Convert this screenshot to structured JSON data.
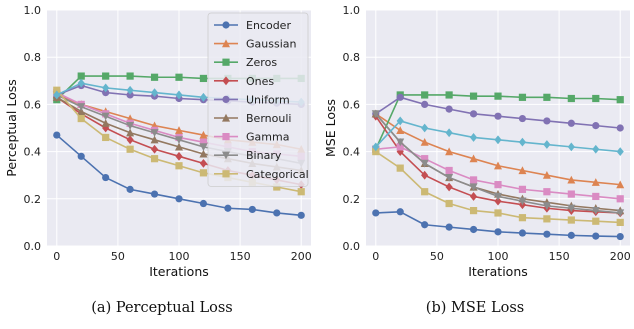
{
  "chart_data": [
    {
      "type": "line",
      "caption": "(a) Perceptual Loss",
      "xlabel": "Iterations",
      "ylabel": "Perceptual Loss",
      "xlim": [
        -8,
        208
      ],
      "ylim": [
        0.0,
        1.0
      ],
      "xticks": [
        "0",
        "50",
        "100",
        "150",
        "200"
      ],
      "yticks": [
        "0.0",
        "0.2",
        "0.4",
        "0.6",
        "0.8",
        "1.0"
      ],
      "grid": true,
      "legend_position": "top-right",
      "x": [
        0,
        20,
        40,
        60,
        80,
        100,
        120,
        140,
        160,
        180,
        200
      ],
      "series": [
        {
          "name": "Encoder",
          "color": "#4c72b0",
          "marker": "circle",
          "values": [
            0.47,
            0.38,
            0.29,
            0.24,
            0.22,
            0.2,
            0.18,
            0.16,
            0.155,
            0.14,
            0.13
          ]
        },
        {
          "name": "Gaussian",
          "color": "#dd8452",
          "marker": "triangle-up",
          "values": [
            0.64,
            0.6,
            0.57,
            0.54,
            0.51,
            0.49,
            0.47,
            0.45,
            0.44,
            0.43,
            0.41
          ]
        },
        {
          "name": "Zeros",
          "color": "#55a868",
          "marker": "square",
          "values": [
            0.62,
            0.72,
            0.72,
            0.72,
            0.715,
            0.715,
            0.71,
            0.71,
            0.71,
            0.71,
            0.71
          ]
        },
        {
          "name": "Ones",
          "color": "#c44e52",
          "marker": "diamond",
          "values": [
            0.63,
            0.56,
            0.5,
            0.45,
            0.41,
            0.38,
            0.35,
            0.32,
            0.3,
            0.28,
            0.26
          ]
        },
        {
          "name": "Uniform",
          "color": "#8172b3",
          "marker": "circle",
          "values": [
            0.64,
            0.68,
            0.65,
            0.64,
            0.635,
            0.625,
            0.62,
            0.615,
            0.61,
            0.605,
            0.6
          ]
        },
        {
          "name": "Bernouli",
          "color": "#937860",
          "marker": "triangle-up",
          "values": [
            0.63,
            0.57,
            0.52,
            0.48,
            0.45,
            0.42,
            0.39,
            0.37,
            0.35,
            0.335,
            0.32
          ]
        },
        {
          "name": "Gamma",
          "color": "#da8bc3",
          "marker": "square",
          "values": [
            0.65,
            0.6,
            0.56,
            0.52,
            0.49,
            0.46,
            0.44,
            0.42,
            0.4,
            0.39,
            0.38
          ]
        },
        {
          "name": "Binary",
          "color": "#8c8c8c",
          "marker": "triangle-down",
          "values": [
            0.64,
            0.59,
            0.55,
            0.51,
            0.48,
            0.45,
            0.42,
            0.4,
            0.38,
            0.37,
            0.35
          ]
        },
        {
          "name": "Categorical",
          "color": "#ccb974",
          "marker": "square",
          "values": [
            0.66,
            0.54,
            0.46,
            0.41,
            0.37,
            0.34,
            0.31,
            0.29,
            0.27,
            0.25,
            0.23
          ]
        },
        {
          "name": "",
          "color": "#64b5cd",
          "marker": "diamond",
          "values": [
            0.64,
            0.69,
            0.67,
            0.66,
            0.65,
            0.64,
            0.63,
            0.625,
            0.62,
            0.615,
            0.61
          ]
        }
      ]
    },
    {
      "type": "line",
      "caption": "(b) MSE Loss",
      "xlabel": "Iterations",
      "ylabel": "MSE Loss",
      "xlim": [
        -8,
        208
      ],
      "ylim": [
        0.0,
        1.0
      ],
      "xticks": [
        "0",
        "50",
        "100",
        "150",
        "200"
      ],
      "yticks": [
        "0.0",
        "0.2",
        "0.4",
        "0.6",
        "0.8",
        "1.0"
      ],
      "grid": true,
      "legend_position": "none",
      "x": [
        0,
        20,
        40,
        60,
        80,
        100,
        120,
        140,
        160,
        180,
        200
      ],
      "series": [
        {
          "name": "Encoder",
          "color": "#4c72b0",
          "marker": "circle",
          "values": [
            0.14,
            0.145,
            0.09,
            0.08,
            0.07,
            0.06,
            0.055,
            0.05,
            0.045,
            0.042,
            0.04
          ]
        },
        {
          "name": "Gaussian",
          "color": "#dd8452",
          "marker": "triangle-up",
          "values": [
            0.56,
            0.49,
            0.44,
            0.4,
            0.37,
            0.34,
            0.32,
            0.3,
            0.28,
            0.27,
            0.26
          ]
        },
        {
          "name": "Zeros",
          "color": "#55a868",
          "marker": "square",
          "values": [
            0.41,
            0.64,
            0.64,
            0.64,
            0.635,
            0.635,
            0.63,
            0.63,
            0.625,
            0.625,
            0.62
          ]
        },
        {
          "name": "Ones",
          "color": "#c44e52",
          "marker": "diamond",
          "values": [
            0.55,
            0.4,
            0.3,
            0.25,
            0.21,
            0.19,
            0.175,
            0.16,
            0.15,
            0.145,
            0.14
          ]
        },
        {
          "name": "Uniform",
          "color": "#8172b3",
          "marker": "circle",
          "values": [
            0.56,
            0.63,
            0.6,
            0.58,
            0.56,
            0.55,
            0.54,
            0.53,
            0.52,
            0.51,
            0.5
          ]
        },
        {
          "name": "Bernouli",
          "color": "#937860",
          "marker": "triangle-up",
          "values": [
            0.56,
            0.44,
            0.35,
            0.29,
            0.25,
            0.22,
            0.2,
            0.185,
            0.17,
            0.16,
            0.15
          ]
        },
        {
          "name": "Gamma",
          "color": "#da8bc3",
          "marker": "square",
          "values": [
            0.41,
            0.42,
            0.37,
            0.32,
            0.28,
            0.26,
            0.24,
            0.23,
            0.22,
            0.21,
            0.2
          ]
        },
        {
          "name": "Binary",
          "color": "#8c8c8c",
          "marker": "triangle-down",
          "values": [
            0.56,
            0.44,
            0.35,
            0.29,
            0.25,
            0.21,
            0.19,
            0.17,
            0.16,
            0.15,
            0.14
          ]
        },
        {
          "name": "Categorical",
          "color": "#ccb974",
          "marker": "square",
          "values": [
            0.4,
            0.33,
            0.23,
            0.18,
            0.15,
            0.14,
            0.12,
            0.115,
            0.11,
            0.105,
            0.1
          ]
        },
        {
          "name": "",
          "color": "#64b5cd",
          "marker": "diamond",
          "values": [
            0.42,
            0.53,
            0.5,
            0.48,
            0.46,
            0.45,
            0.44,
            0.43,
            0.42,
            0.41,
            0.4
          ]
        }
      ]
    }
  ]
}
